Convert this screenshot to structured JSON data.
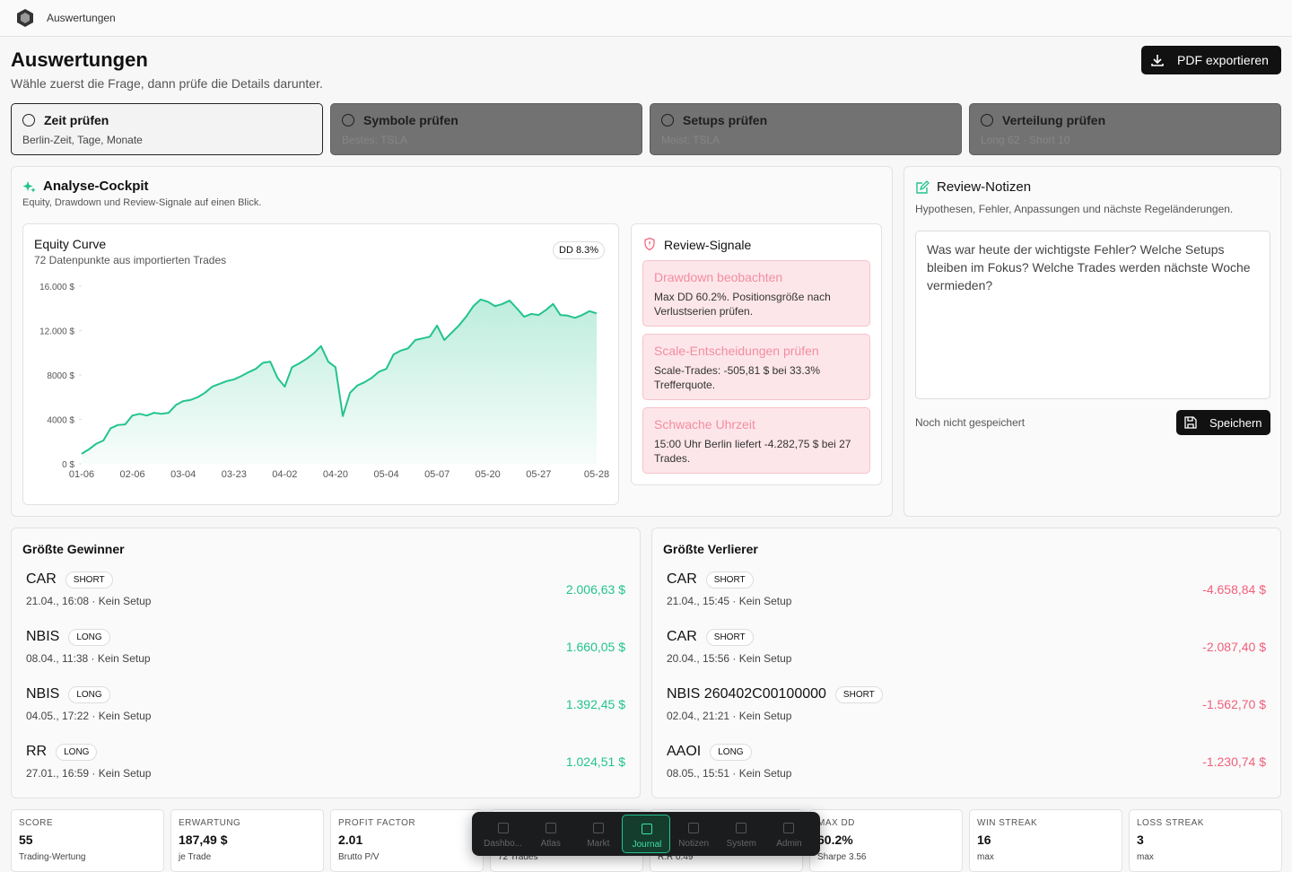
{
  "app": {
    "name": "Auswertungen"
  },
  "header": {
    "title": "Auswertungen",
    "subtitle": "Wähle zuerst die Frage, dann prüfe die Details darunter.",
    "export_button": "PDF exportieren"
  },
  "tabs": [
    {
      "title": "Zeit prüfen",
      "sub": "Berlin-Zeit, Tage, Monate"
    },
    {
      "title": "Symbole prüfen",
      "sub": "Bestes: TSLA"
    },
    {
      "title": "Setups prüfen",
      "sub": "Meist: TSLA"
    },
    {
      "title": "Verteilung prüfen",
      "sub": "Long 62 · Short 10"
    }
  ],
  "cockpit": {
    "title": "Analyse-Cockpit",
    "subtitle": "Equity, Drawdown und Review-Signale auf einen Blick."
  },
  "chart_data": {
    "type": "line",
    "title": "Equity Curve",
    "subtitle": "72 Datenpunkte aus importierten Trades",
    "badge": "DD 8.3%",
    "color": "#22c38e",
    "categories": [
      "01-06",
      null,
      null,
      null,
      null,
      null,
      null,
      "02-06",
      null,
      null,
      null,
      null,
      null,
      null,
      "03-04",
      null,
      null,
      null,
      null,
      null,
      null,
      "03-23",
      null,
      null,
      null,
      null,
      null,
      null,
      "04-02",
      null,
      null,
      null,
      null,
      null,
      null,
      "04-20",
      null,
      null,
      null,
      null,
      null,
      null,
      "05-04",
      null,
      null,
      null,
      null,
      null,
      null,
      "05-07",
      null,
      null,
      null,
      null,
      null,
      null,
      "05-20",
      null,
      null,
      null,
      null,
      null,
      null,
      "05-27",
      null,
      null,
      null,
      null,
      null,
      null,
      null,
      "05-28"
    ],
    "values": [
      900,
      1300,
      1800,
      2100,
      3200,
      3500,
      3550,
      4350,
      4500,
      4350,
      4600,
      4500,
      4600,
      5300,
      5650,
      5750,
      6000,
      6400,
      6950,
      7200,
      7450,
      7600,
      7900,
      8250,
      8550,
      9100,
      9200,
      7750,
      6950,
      8700,
      9050,
      9450,
      9950,
      10600,
      9200,
      8700,
      4300,
      6400,
      7050,
      7350,
      7750,
      8300,
      8550,
      9850,
      10200,
      10400,
      11150,
      11300,
      11450,
      12450,
      11150,
      11800,
      12450,
      13250,
      14200,
      14800,
      14600,
      14200,
      14400,
      14700,
      14000,
      13250,
      13500,
      13400,
      13850,
      14400,
      13400,
      13350,
      13150,
      13400,
      13750,
      13550
    ],
    "ylim": [
      0,
      16000
    ],
    "yticks": [
      {
        "value": 0,
        "label": "0 $"
      },
      {
        "value": 4000,
        "label": "4000 $"
      },
      {
        "value": 8000,
        "label": "8000 $"
      },
      {
        "value": 12000,
        "label": "12.000 $"
      },
      {
        "value": 16000,
        "label": "16.000 $"
      }
    ]
  },
  "signals": {
    "title": "Review-Signale",
    "items": [
      {
        "title": "Drawdown beobachten",
        "text": "Max DD 60.2%. Positionsgröße nach Verlustserien prüfen."
      },
      {
        "title": "Scale-Entscheidungen prüfen",
        "text": "Scale-Trades: -505,81 $ bei 33.3% Trefferquote."
      },
      {
        "title": "Schwache Uhrzeit",
        "text": "15:00 Uhr Berlin liefert -4.282,75 $ bei 27 Trades."
      }
    ]
  },
  "notes": {
    "title": "Review-Notizen",
    "subtitle": "Hypothesen, Fehler, Anpassungen und nächste Regeländerungen.",
    "placeholder": "Was war heute der wichtigste Fehler? Welche Setups bleiben im Fokus? Welche Trades werden nächste Woche vermieden?",
    "status": "Noch nicht gespeichert",
    "save_button": "Speichern"
  },
  "winners": {
    "title": "Größte Gewinner",
    "rows": [
      {
        "symbol": "CAR",
        "side": "SHORT",
        "meta": "21.04., 16:08 · Kein Setup",
        "pnl": "2.006,63 $"
      },
      {
        "symbol": "NBIS",
        "side": "LONG",
        "meta": "08.04., 11:38 · Kein Setup",
        "pnl": "1.660,05 $"
      },
      {
        "symbol": "NBIS",
        "side": "LONG",
        "meta": "04.05., 17:22 · Kein Setup",
        "pnl": "1.392,45 $"
      },
      {
        "symbol": "RR",
        "side": "LONG",
        "meta": "27.01., 16:59 · Kein Setup",
        "pnl": "1.024,51 $"
      }
    ]
  },
  "losers": {
    "title": "Größte Verlierer",
    "rows": [
      {
        "symbol": "CAR",
        "side": "SHORT",
        "meta": "21.04., 15:45 · Kein Setup",
        "pnl": "-4.658,84 $"
      },
      {
        "symbol": "CAR",
        "side": "SHORT",
        "meta": "20.04., 15:56 · Kein Setup",
        "pnl": "-2.087,40 $"
      },
      {
        "symbol": "NBIS 260402C00100000",
        "side": "SHORT",
        "meta": "02.04., 21:21 · Kein Setup",
        "pnl": "-1.562,70 $"
      },
      {
        "symbol": "AAOI",
        "side": "LONG",
        "meta": "08.05., 15:51 · Kein Setup",
        "pnl": "-1.230,74 $"
      }
    ]
  },
  "stats": [
    {
      "label": "SCORE",
      "value": "55",
      "sub": "Trading-Wertung"
    },
    {
      "label": "ERWARTUNG",
      "value": "187,49 $",
      "sub": "je Trade"
    },
    {
      "label": "PROFIT FACTOR",
      "value": "2.01",
      "sub": "Brutto P/V"
    },
    {
      "sub": "72 Trades"
    },
    {
      "sub": "R:R 0.49"
    },
    {
      "label": "MAX DD",
      "value": "60.2%",
      "sub": "Sharpe 3.56"
    },
    {
      "label": "WIN STREAK",
      "value": "16",
      "sub": "max"
    },
    {
      "label": "LOSS STREAK",
      "value": "3",
      "sub": "max"
    }
  ],
  "nav": [
    "Dashbo...",
    "Atlas",
    "Markt",
    "Journal",
    "Notizen",
    "System",
    "Admin"
  ]
}
